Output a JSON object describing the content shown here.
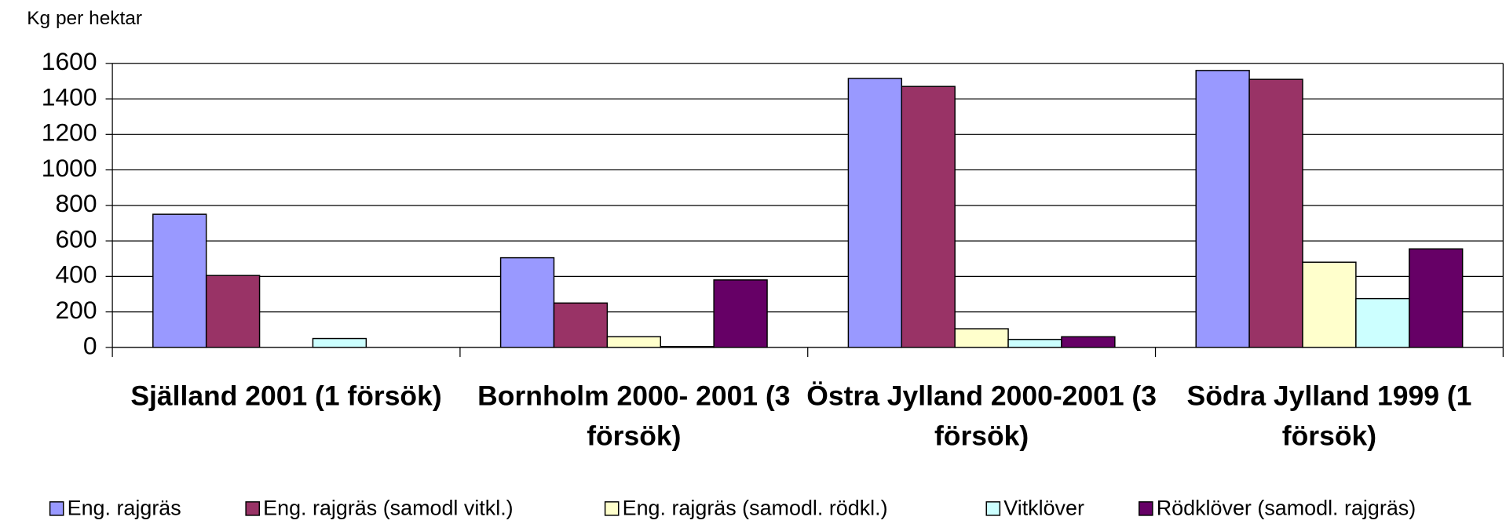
{
  "chart_data": {
    "type": "bar",
    "y_axis_label": "Kg per hektar",
    "categories": [
      "Själland 2001 (1 försök)",
      "Bornholm 2000- 2001 (3 försök)",
      "Östra Jylland 2000-2001 (3 försök)",
      "Södra Jylland 1999 (1 försök)"
    ],
    "series": [
      {
        "name": "Eng. rajgräs",
        "color": "#9999ff",
        "values": [
          750,
          505,
          1515,
          1560
        ]
      },
      {
        "name": "Eng. rajgräs (samodl vitkl.)",
        "color": "#993366",
        "values": [
          405,
          250,
          1470,
          1510
        ]
      },
      {
        "name": "Eng. rajgräs (samodl. rödkl.)",
        "color": "#ffffcc",
        "values": [
          0,
          60,
          105,
          480
        ]
      },
      {
        "name": "Vitklöver",
        "color": "#ccffff",
        "values": [
          50,
          5,
          45,
          275
        ]
      },
      {
        "name": "Rödklöver (samodl. rajgräs)",
        "color": "#660066",
        "values": [
          0,
          380,
          60,
          555
        ]
      }
    ],
    "ylim": [
      0,
      1600
    ],
    "yticks": [
      0,
      200,
      400,
      600,
      800,
      1000,
      1200,
      1400,
      1600
    ],
    "grid": true,
    "legend": "bottom"
  }
}
